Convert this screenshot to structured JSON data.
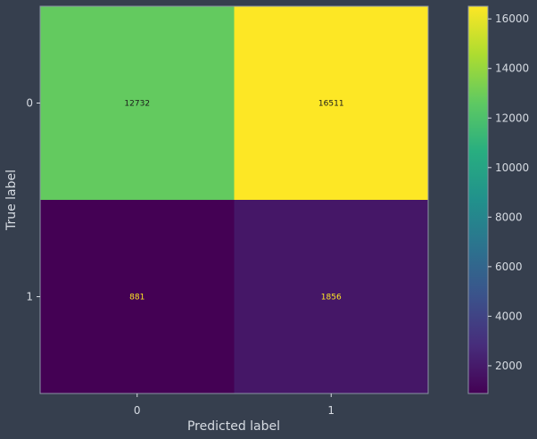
{
  "chart_data": {
    "type": "heatmap",
    "title": "",
    "xlabel": "Predicted label",
    "ylabel": "True label",
    "x_categories": [
      "0",
      "1"
    ],
    "y_categories": [
      "0",
      "1"
    ],
    "values": [
      [
        12732,
        16511
      ],
      [
        881,
        1856
      ]
    ],
    "colormap": "viridis",
    "colorbar": {
      "min": 881,
      "max": 16511,
      "ticks": [
        2000,
        4000,
        6000,
        8000,
        10000,
        12000,
        14000,
        16000
      ]
    },
    "grid": false,
    "colors": {
      "background": "#363f4e",
      "text": "#d6dbe2",
      "text_on_dark": "#fde725",
      "text_on_light": "#1a1a1a"
    }
  }
}
